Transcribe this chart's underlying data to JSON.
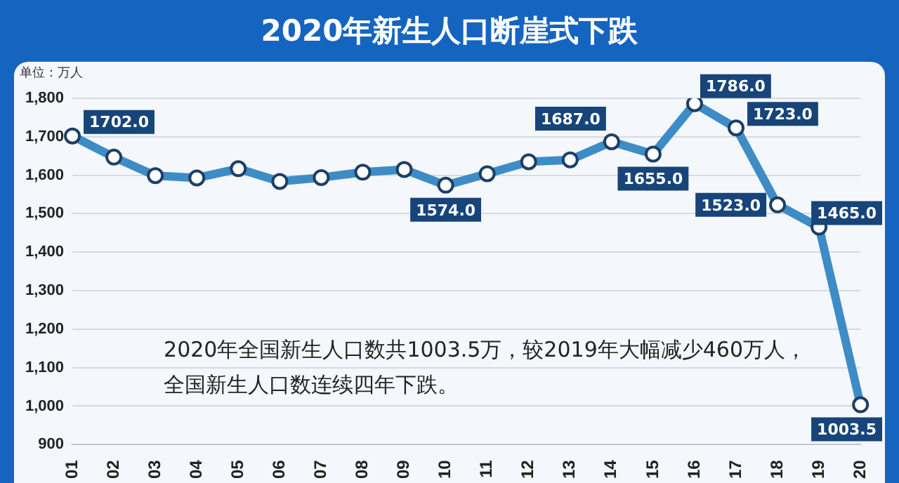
{
  "chart_data": {
    "type": "line",
    "title": "2020年新生人口断崖式下跌",
    "annotations": [
      "单位：万人",
      "2020年全国新生人口数共1003.5万，较2019年大幅减少460万人，",
      "全国新生人口数连续四年下跌。"
    ],
    "categories": [
      "01",
      "02",
      "03",
      "04",
      "05",
      "06",
      "07",
      "08",
      "09",
      "10",
      "11",
      "12",
      "13",
      "14",
      "15",
      "16",
      "17",
      "18",
      "19",
      "20"
    ],
    "series": [
      {
        "color": "#3d8cc6",
        "values": [
          1702,
          1647,
          1599,
          1593,
          1617,
          1584,
          1594,
          1608,
          1615,
          1574,
          1604,
          1635,
          1640,
          1687,
          1655,
          1786,
          1723,
          1523,
          1465,
          1003.5
        ],
        "value_labels": [
          "1702.0",
          null,
          null,
          null,
          null,
          null,
          null,
          null,
          null,
          "1574.0",
          null,
          null,
          null,
          "1687.0",
          "1655.0",
          "1786.0",
          "1723.0",
          "1523.0",
          "1465.0",
          "1003.5"
        ]
      }
    ],
    "ylim": [
      900,
      1800
    ],
    "yticks": [
      {
        "value": 900,
        "label": "900"
      },
      {
        "value": 1000,
        "label": "1,000"
      },
      {
        "value": 1100,
        "label": "1,100"
      },
      {
        "value": 1200,
        "label": "1,200"
      },
      {
        "value": 1300,
        "label": "1,300"
      },
      {
        "value": 1400,
        "label": "1,400"
      },
      {
        "value": 1500,
        "label": "1,500"
      },
      {
        "value": 1600,
        "label": "1,600"
      },
      {
        "value": 1700,
        "label": "1,700"
      },
      {
        "value": 1800,
        "label": "1,800"
      }
    ],
    "grid": "y",
    "legend": false,
    "marker": "circle",
    "line_style": "solid"
  }
}
